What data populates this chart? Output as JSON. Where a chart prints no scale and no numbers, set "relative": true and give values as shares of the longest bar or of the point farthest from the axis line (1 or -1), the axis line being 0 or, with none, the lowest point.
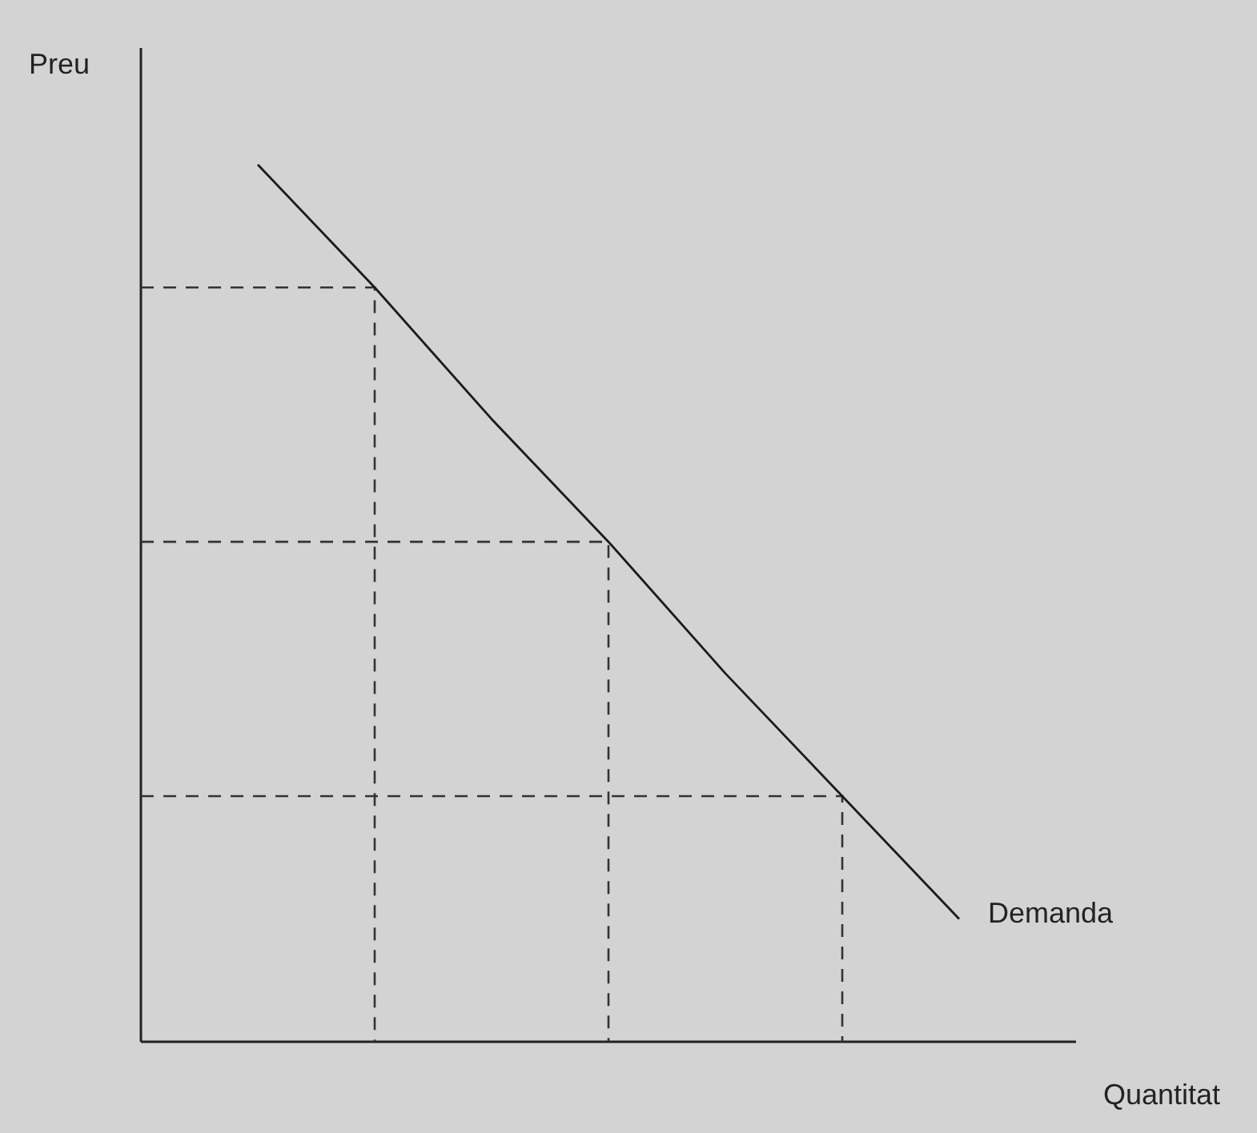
{
  "chart_data": {
    "type": "line",
    "relative": true,
    "xlabel": "Quantitat",
    "ylabel": "Preu",
    "tick_labels": false,
    "categories": [
      null,
      null,
      null,
      null,
      null,
      null,
      null
    ],
    "series": [
      {
        "name": "Demanda",
        "color": "#1a1a1a",
        "values": [
          1,
          0.86,
          0.71,
          0.57,
          0.42,
          0.28,
          0.14
        ]
      }
    ],
    "ref_lines": [
      {
        "axis": "y",
        "value": 0.86,
        "color": "#333333",
        "line_style": "dashed"
      },
      {
        "axis": "y",
        "value": 0.57,
        "color": "#333333",
        "line_style": "dashed"
      },
      {
        "axis": "y",
        "value": 0.28,
        "color": "#333333",
        "line_style": "dashed"
      }
    ]
  }
}
